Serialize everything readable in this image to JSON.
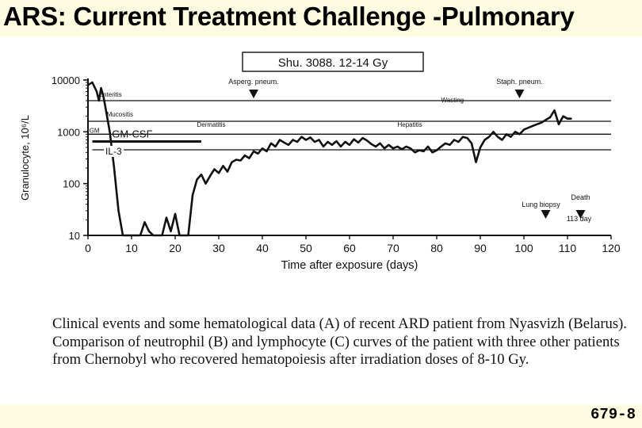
{
  "slide": {
    "title": "ARS: Current Treatment Challenge -Pulmonary",
    "slide_number": "679-8",
    "background": "#fdfbe0"
  },
  "caption": "Clinical events and some hematological data (A) of recent ARD patient from Nyasvizh (Belarus). Comparison of neutrophil (B) and lymphocyte (C) curves of the patient with three other patients from Chernobyl who recovered hematopoiesis after irradiation doses of 8-10 Gy.",
  "chart_data": {
    "type": "line",
    "title": "Shu. 3088. 12-14 Gy",
    "xlabel": "Time after exposure (days)",
    "ylabel": "Granulocyte, 10⁶/L",
    "xlim": [
      0,
      120
    ],
    "ylim": [
      10,
      10000
    ],
    "yscale": "log",
    "x_ticks": [
      0,
      10,
      20,
      30,
      40,
      50,
      60,
      70,
      80,
      90,
      100,
      110,
      120
    ],
    "y_ticks": [
      {
        "value": 10,
        "label": "10"
      },
      {
        "value": 100,
        "label": "100"
      },
      {
        "value": 1000,
        "label": "1000"
      },
      {
        "value": 10000,
        "label": "10000"
      }
    ],
    "series": [
      {
        "color": "#111111",
        "points": [
          [
            0,
            8000
          ],
          [
            1,
            9000
          ],
          [
            2,
            6000
          ],
          [
            2.5,
            4000
          ],
          [
            3,
            7000
          ],
          [
            3.5,
            5000
          ],
          [
            4,
            3000
          ],
          [
            5,
            1000
          ],
          [
            6,
            200
          ],
          [
            7,
            30
          ],
          [
            8,
            10
          ],
          [
            12,
            10
          ],
          [
            13,
            18
          ],
          [
            14,
            12
          ],
          [
            15,
            10
          ],
          [
            17,
            10
          ],
          [
            18,
            22
          ],
          [
            19,
            12
          ],
          [
            20,
            26
          ],
          [
            21,
            10
          ],
          [
            23,
            10
          ],
          [
            24,
            60
          ],
          [
            25,
            120
          ],
          [
            26,
            150
          ],
          [
            27,
            100
          ],
          [
            28,
            140
          ],
          [
            29,
            190
          ],
          [
            30,
            160
          ],
          [
            31,
            220
          ],
          [
            32,
            170
          ],
          [
            33,
            260
          ],
          [
            34,
            290
          ],
          [
            35,
            280
          ],
          [
            36,
            350
          ],
          [
            37,
            310
          ],
          [
            38,
            420
          ],
          [
            39,
            380
          ],
          [
            40,
            480
          ],
          [
            41,
            420
          ],
          [
            42,
            600
          ],
          [
            43,
            520
          ],
          [
            44,
            700
          ],
          [
            45,
            620
          ],
          [
            46,
            560
          ],
          [
            47,
            700
          ],
          [
            48,
            640
          ],
          [
            49,
            800
          ],
          [
            50,
            700
          ],
          [
            51,
            780
          ],
          [
            52,
            640
          ],
          [
            53,
            700
          ],
          [
            54,
            520
          ],
          [
            55,
            640
          ],
          [
            56,
            560
          ],
          [
            57,
            660
          ],
          [
            58,
            520
          ],
          [
            59,
            640
          ],
          [
            60,
            560
          ],
          [
            61,
            720
          ],
          [
            62,
            620
          ],
          [
            63,
            760
          ],
          [
            64,
            680
          ],
          [
            65,
            580
          ],
          [
            66,
            520
          ],
          [
            67,
            600
          ],
          [
            68,
            480
          ],
          [
            69,
            560
          ],
          [
            70,
            480
          ],
          [
            71,
            520
          ],
          [
            72,
            460
          ],
          [
            73,
            520
          ],
          [
            74,
            480
          ],
          [
            75,
            400
          ],
          [
            76,
            440
          ],
          [
            77,
            420
          ],
          [
            78,
            520
          ],
          [
            79,
            400
          ],
          [
            80,
            440
          ],
          [
            81,
            520
          ],
          [
            82,
            600
          ],
          [
            83,
            560
          ],
          [
            84,
            700
          ],
          [
            85,
            640
          ],
          [
            86,
            800
          ],
          [
            87,
            760
          ],
          [
            88,
            600
          ],
          [
            89,
            260
          ],
          [
            90,
            500
          ],
          [
            91,
            700
          ],
          [
            92,
            800
          ],
          [
            93,
            1000
          ],
          [
            94,
            800
          ],
          [
            95,
            700
          ],
          [
            96,
            900
          ],
          [
            97,
            800
          ],
          [
            98,
            1000
          ],
          [
            99,
            900
          ],
          [
            100,
            1100
          ],
          [
            101,
            1200
          ],
          [
            102,
            1300
          ],
          [
            103,
            1400
          ],
          [
            104,
            1500
          ],
          [
            105,
            1700
          ],
          [
            106,
            1900
          ],
          [
            107,
            2600
          ],
          [
            108,
            1400
          ],
          [
            109,
            2000
          ],
          [
            110,
            1800
          ],
          [
            111,
            1800
          ]
        ]
      }
    ],
    "reference_lines": [
      {
        "y": 4000,
        "x_start": 0,
        "x_end": 120,
        "label": "Enteritis"
      },
      {
        "y": 1600,
        "x_start": 0,
        "x_end": 120,
        "label": "Mucositis"
      },
      {
        "y": 900,
        "x_start": 0,
        "x_end": 120,
        "label": "GM"
      },
      {
        "y": 650,
        "x_start": 1,
        "x_end": 26,
        "label": "GM-CSF"
      },
      {
        "y": 450,
        "x_start": 1,
        "x_end": 120,
        "label": "IL-3"
      }
    ],
    "annotations": [
      {
        "x": 7,
        "y": 5500,
        "text": "Enteritis"
      },
      {
        "x": 25,
        "y": 1250,
        "text": "Dermatitis"
      },
      {
        "x": 71,
        "y": 1250,
        "text": "Hepatitis"
      },
      {
        "x": 81,
        "y": 3700,
        "text": "Wasting"
      }
    ],
    "events": [
      {
        "x": 38,
        "label": "Asperg. pneum."
      },
      {
        "x": 99,
        "label": "Staph. pneum."
      },
      {
        "x": 105,
        "label": "Lung biopsy"
      },
      {
        "x": 113,
        "label": "Death",
        "sublabel": "113 day"
      }
    ]
  }
}
